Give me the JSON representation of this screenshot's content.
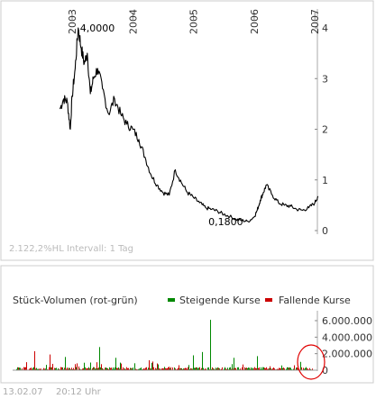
{
  "chart_data": [
    {
      "type": "line",
      "x_tick_labels": [
        "2003",
        "2004",
        "2005",
        "2006",
        "2007"
      ],
      "y_ticks": [
        0,
        1,
        2,
        3,
        4
      ],
      "ylim": [
        0,
        4.2
      ],
      "grid": false,
      "series": [
        {
          "x": [
            2002.8,
            2002.86,
            2002.92,
            2002.97,
            2003.0,
            2003.05,
            2003.1,
            2003.15,
            2003.2,
            2003.25,
            2003.3,
            2003.35,
            2003.42,
            2003.5,
            2003.6,
            2003.7,
            2003.8,
            2003.9,
            2004.0,
            2004.1,
            2004.2,
            2004.3,
            2004.4,
            2004.5,
            2004.6,
            2004.7,
            2004.8,
            2004.9,
            2005.0,
            2005.1,
            2005.2,
            2005.3,
            2005.4,
            2005.5,
            2005.6,
            2005.7,
            2005.8,
            2005.9,
            2006.0,
            2006.05,
            2006.1,
            2006.15,
            2006.2,
            2006.3,
            2006.4,
            2006.5,
            2006.6,
            2006.7,
            2006.8,
            2006.9,
            2007.0,
            2007.05
          ],
          "y": [
            2.4,
            2.6,
            2.55,
            2.0,
            2.65,
            3.2,
            4.0,
            3.6,
            3.3,
            3.5,
            2.7,
            3.0,
            3.2,
            2.8,
            2.3,
            2.6,
            2.3,
            2.1,
            2.0,
            1.8,
            1.45,
            1.1,
            0.9,
            0.75,
            0.7,
            1.2,
            0.95,
            0.75,
            0.65,
            0.55,
            0.45,
            0.42,
            0.38,
            0.32,
            0.28,
            0.22,
            0.2,
            0.18,
            0.27,
            0.4,
            0.6,
            0.75,
            0.9,
            0.7,
            0.55,
            0.5,
            0.48,
            0.42,
            0.4,
            0.45,
            0.55,
            0.68
          ]
        }
      ],
      "annotations": [
        {
          "text": "4,0000",
          "x": 2003.1,
          "y": 4.0
        },
        {
          "text": "0,1800",
          "x": 2005.9,
          "y": 0.18
        }
      ],
      "info_text": "2.122,2%HL  Intervall: 1 Tag"
    },
    {
      "type": "bar",
      "title": "Stück-Volumen (rot-grün)",
      "legend": [
        "Steigende Kurse",
        "Fallende Kurse"
      ],
      "y_ticks": [
        "0",
        "2.000.000",
        "4.000.000",
        "6.000.000"
      ],
      "ylim": [
        0,
        6500000
      ],
      "colors": {
        "up": "#008800",
        "down": "#cc0000"
      }
    }
  ],
  "footer": {
    "date": "13.02.07",
    "time": "20:12 Uhr"
  },
  "colors": {
    "line": "#000000",
    "frame": "#cccccc",
    "highlight": "#e00000"
  }
}
